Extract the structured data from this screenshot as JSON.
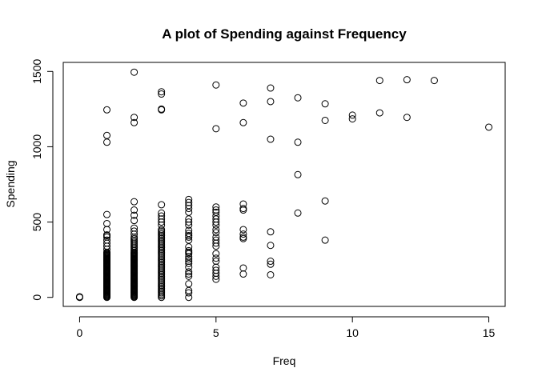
{
  "chart_data": {
    "type": "scatter",
    "title": "A plot of Spending against Frequency",
    "xlabel": "Freq",
    "ylabel": "Spending",
    "xlim": [
      -0.6,
      15.6
    ],
    "ylim": [
      -60,
      1560
    ],
    "x_ticks": [
      0,
      5,
      10,
      15
    ],
    "y_ticks": [
      0,
      500,
      1000,
      1500
    ],
    "grid": false,
    "legend": "none",
    "marker": "open-circle",
    "point_color": "#000000",
    "series": [
      {
        "points": [
          [
            0,
            0
          ],
          [
            0,
            2
          ],
          [
            0,
            4
          ],
          [
            1,
            0
          ],
          [
            1,
            5
          ],
          [
            1,
            10
          ],
          [
            1,
            15
          ],
          [
            1,
            20
          ],
          [
            1,
            25
          ],
          [
            1,
            30
          ],
          [
            1,
            35
          ],
          [
            1,
            40
          ],
          [
            1,
            45
          ],
          [
            1,
            50
          ],
          [
            1,
            55
          ],
          [
            1,
            60
          ],
          [
            1,
            65
          ],
          [
            1,
            70
          ],
          [
            1,
            75
          ],
          [
            1,
            80
          ],
          [
            1,
            85
          ],
          [
            1,
            90
          ],
          [
            1,
            95
          ],
          [
            1,
            100
          ],
          [
            1,
            105
          ],
          [
            1,
            110
          ],
          [
            1,
            115
          ],
          [
            1,
            120
          ],
          [
            1,
            125
          ],
          [
            1,
            130
          ],
          [
            1,
            135
          ],
          [
            1,
            140
          ],
          [
            1,
            145
          ],
          [
            1,
            150
          ],
          [
            1,
            155
          ],
          [
            1,
            160
          ],
          [
            1,
            165
          ],
          [
            1,
            170
          ],
          [
            1,
            175
          ],
          [
            1,
            180
          ],
          [
            1,
            185
          ],
          [
            1,
            190
          ],
          [
            1,
            195
          ],
          [
            1,
            200
          ],
          [
            1,
            205
          ],
          [
            1,
            210
          ],
          [
            1,
            215
          ],
          [
            1,
            220
          ],
          [
            1,
            225
          ],
          [
            1,
            230
          ],
          [
            1,
            235
          ],
          [
            1,
            240
          ],
          [
            1,
            245
          ],
          [
            1,
            250
          ],
          [
            1,
            255
          ],
          [
            1,
            260
          ],
          [
            1,
            265
          ],
          [
            1,
            270
          ],
          [
            1,
            275
          ],
          [
            1,
            280
          ],
          [
            1,
            285
          ],
          [
            1,
            290
          ],
          [
            1,
            295
          ],
          [
            1,
            300
          ],
          [
            1,
            320
          ],
          [
            1,
            340
          ],
          [
            1,
            360
          ],
          [
            1,
            380
          ],
          [
            1,
            400
          ],
          [
            1,
            410
          ],
          [
            1,
            415
          ],
          [
            1,
            450
          ],
          [
            1,
            490
          ],
          [
            1,
            550
          ],
          [
            1,
            1030
          ],
          [
            1,
            1075
          ],
          [
            1,
            1245
          ],
          [
            2,
            0
          ],
          [
            2,
            5
          ],
          [
            2,
            10
          ],
          [
            2,
            15
          ],
          [
            2,
            20
          ],
          [
            2,
            25
          ],
          [
            2,
            30
          ],
          [
            2,
            35
          ],
          [
            2,
            40
          ],
          [
            2,
            45
          ],
          [
            2,
            50
          ],
          [
            2,
            55
          ],
          [
            2,
            60
          ],
          [
            2,
            65
          ],
          [
            2,
            70
          ],
          [
            2,
            75
          ],
          [
            2,
            80
          ],
          [
            2,
            85
          ],
          [
            2,
            90
          ],
          [
            2,
            95
          ],
          [
            2,
            100
          ],
          [
            2,
            105
          ],
          [
            2,
            110
          ],
          [
            2,
            115
          ],
          [
            2,
            120
          ],
          [
            2,
            125
          ],
          [
            2,
            130
          ],
          [
            2,
            135
          ],
          [
            2,
            140
          ],
          [
            2,
            145
          ],
          [
            2,
            150
          ],
          [
            2,
            155
          ],
          [
            2,
            160
          ],
          [
            2,
            165
          ],
          [
            2,
            170
          ],
          [
            2,
            175
          ],
          [
            2,
            180
          ],
          [
            2,
            185
          ],
          [
            2,
            190
          ],
          [
            2,
            195
          ],
          [
            2,
            200
          ],
          [
            2,
            205
          ],
          [
            2,
            210
          ],
          [
            2,
            215
          ],
          [
            2,
            220
          ],
          [
            2,
            225
          ],
          [
            2,
            230
          ],
          [
            2,
            235
          ],
          [
            2,
            240
          ],
          [
            2,
            245
          ],
          [
            2,
            250
          ],
          [
            2,
            255
          ],
          [
            2,
            260
          ],
          [
            2,
            265
          ],
          [
            2,
            270
          ],
          [
            2,
            275
          ],
          [
            2,
            280
          ],
          [
            2,
            285
          ],
          [
            2,
            290
          ],
          [
            2,
            295
          ],
          [
            2,
            300
          ],
          [
            2,
            310
          ],
          [
            2,
            320
          ],
          [
            2,
            330
          ],
          [
            2,
            340
          ],
          [
            2,
            350
          ],
          [
            2,
            360
          ],
          [
            2,
            370
          ],
          [
            2,
            380
          ],
          [
            2,
            390
          ],
          [
            2,
            400
          ],
          [
            2,
            420
          ],
          [
            2,
            440
          ],
          [
            2,
            460
          ],
          [
            2,
            510
          ],
          [
            2,
            545
          ],
          [
            2,
            580
          ],
          [
            2,
            635
          ],
          [
            2,
            1160
          ],
          [
            2,
            1195
          ],
          [
            2,
            1495
          ],
          [
            3,
            0
          ],
          [
            3,
            10
          ],
          [
            3,
            20
          ],
          [
            3,
            30
          ],
          [
            3,
            40
          ],
          [
            3,
            50
          ],
          [
            3,
            60
          ],
          [
            3,
            70
          ],
          [
            3,
            80
          ],
          [
            3,
            90
          ],
          [
            3,
            100
          ],
          [
            3,
            110
          ],
          [
            3,
            120
          ],
          [
            3,
            130
          ],
          [
            3,
            140
          ],
          [
            3,
            150
          ],
          [
            3,
            160
          ],
          [
            3,
            170
          ],
          [
            3,
            180
          ],
          [
            3,
            190
          ],
          [
            3,
            200
          ],
          [
            3,
            210
          ],
          [
            3,
            220
          ],
          [
            3,
            230
          ],
          [
            3,
            240
          ],
          [
            3,
            250
          ],
          [
            3,
            260
          ],
          [
            3,
            270
          ],
          [
            3,
            280
          ],
          [
            3,
            290
          ],
          [
            3,
            300
          ],
          [
            3,
            310
          ],
          [
            3,
            320
          ],
          [
            3,
            330
          ],
          [
            3,
            340
          ],
          [
            3,
            350
          ],
          [
            3,
            360
          ],
          [
            3,
            370
          ],
          [
            3,
            380
          ],
          [
            3,
            390
          ],
          [
            3,
            400
          ],
          [
            3,
            410
          ],
          [
            3,
            420
          ],
          [
            3,
            430
          ],
          [
            3,
            440
          ],
          [
            3,
            450
          ],
          [
            3,
            480
          ],
          [
            3,
            500
          ],
          [
            3,
            520
          ],
          [
            3,
            540
          ],
          [
            3,
            560
          ],
          [
            3,
            615
          ],
          [
            3,
            1245
          ],
          [
            3,
            1250
          ],
          [
            3,
            1350
          ],
          [
            3,
            1365
          ],
          [
            4,
            0
          ],
          [
            4,
            30
          ],
          [
            4,
            45
          ],
          [
            4,
            90
          ],
          [
            4,
            140
          ],
          [
            4,
            155
          ],
          [
            4,
            170
          ],
          [
            4,
            200
          ],
          [
            4,
            225
          ],
          [
            4,
            240
          ],
          [
            4,
            255
          ],
          [
            4,
            270
          ],
          [
            4,
            290
          ],
          [
            4,
            300
          ],
          [
            4,
            310
          ],
          [
            4,
            335
          ],
          [
            4,
            380
          ],
          [
            4,
            400
          ],
          [
            4,
            410
          ],
          [
            4,
            425
          ],
          [
            4,
            445
          ],
          [
            4,
            480
          ],
          [
            4,
            500
          ],
          [
            4,
            520
          ],
          [
            4,
            565
          ],
          [
            4,
            590
          ],
          [
            4,
            610
          ],
          [
            4,
            630
          ],
          [
            4,
            650
          ],
          [
            5,
            120
          ],
          [
            5,
            140
          ],
          [
            5,
            160
          ],
          [
            5,
            180
          ],
          [
            5,
            200
          ],
          [
            5,
            240
          ],
          [
            5,
            260
          ],
          [
            5,
            290
          ],
          [
            5,
            340
          ],
          [
            5,
            360
          ],
          [
            5,
            380
          ],
          [
            5,
            400
          ],
          [
            5,
            430
          ],
          [
            5,
            450
          ],
          [
            5,
            480
          ],
          [
            5,
            500
          ],
          [
            5,
            520
          ],
          [
            5,
            540
          ],
          [
            5,
            565
          ],
          [
            5,
            580
          ],
          [
            5,
            600
          ],
          [
            5,
            1120
          ],
          [
            5,
            1410
          ],
          [
            6,
            155
          ],
          [
            6,
            195
          ],
          [
            6,
            390
          ],
          [
            6,
            400
          ],
          [
            6,
            420
          ],
          [
            6,
            450
          ],
          [
            6,
            580
          ],
          [
            6,
            590
          ],
          [
            6,
            620
          ],
          [
            6,
            1160
          ],
          [
            6,
            1290
          ],
          [
            7,
            150
          ],
          [
            7,
            220
          ],
          [
            7,
            240
          ],
          [
            7,
            345
          ],
          [
            7,
            435
          ],
          [
            7,
            1050
          ],
          [
            7,
            1300
          ],
          [
            7,
            1390
          ],
          [
            8,
            560
          ],
          [
            8,
            815
          ],
          [
            8,
            1030
          ],
          [
            8,
            1325
          ],
          [
            9,
            380
          ],
          [
            9,
            640
          ],
          [
            9,
            1175
          ],
          [
            9,
            1285
          ],
          [
            10,
            1185
          ],
          [
            10,
            1210
          ],
          [
            11,
            1225
          ],
          [
            11,
            1440
          ],
          [
            12,
            1195
          ],
          [
            12,
            1445
          ],
          [
            13,
            1440
          ],
          [
            15,
            1130
          ]
        ]
      }
    ]
  }
}
